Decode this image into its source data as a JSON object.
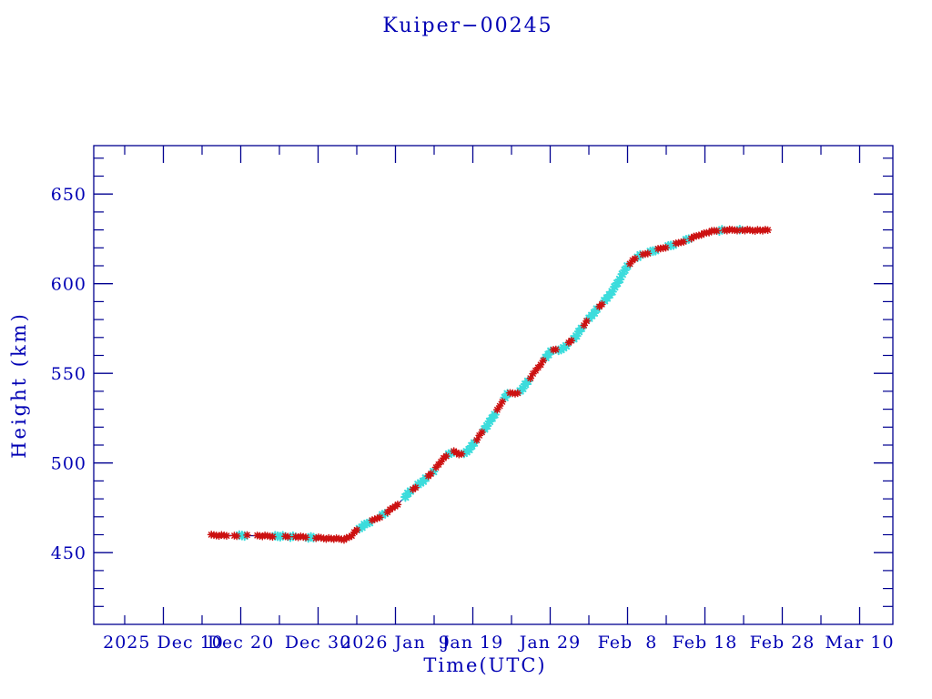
{
  "title": "Kuiper−00245",
  "axes": {
    "x_title": "Time(UTC)",
    "y_title": "Height (km)",
    "x_major_ticks": [
      {
        "day": 9,
        "label": "2025 Dec 10"
      },
      {
        "day": 19,
        "label": "Dec 20"
      },
      {
        "day": 29,
        "label": "Dec 30"
      },
      {
        "day": 39,
        "label": "2026 Jan  9"
      },
      {
        "day": 49,
        "label": "Jan 19"
      },
      {
        "day": 59,
        "label": "Jan 29"
      },
      {
        "day": 69,
        "label": "Feb  8"
      },
      {
        "day": 79,
        "label": "Feb 18"
      },
      {
        "day": 89,
        "label": "Feb 28"
      },
      {
        "day": 99,
        "label": "Mar 10"
      }
    ],
    "x_minor_days": [
      4,
      14,
      24,
      34,
      44,
      54,
      64,
      74,
      84,
      94
    ],
    "y_major_ticks": [
      {
        "value": 450,
        "label": "450"
      },
      {
        "value": 500,
        "label": "500"
      },
      {
        "value": 550,
        "label": "550"
      },
      {
        "value": 600,
        "label": "600"
      },
      {
        "value": 650,
        "label": "650"
      }
    ],
    "y_minor_values": [
      420,
      430,
      440,
      460,
      470,
      480,
      490,
      510,
      520,
      530,
      540,
      560,
      570,
      580,
      590,
      610,
      620,
      630,
      640,
      660,
      670
    ]
  },
  "colors": {
    "background": "#ffffff",
    "axis_line": "#000090",
    "text": "#0000b4",
    "connect_line": "#000080",
    "red_marker": "#cc1111",
    "cyan_marker": "#3cdcdc"
  },
  "chart_data": {
    "type": "line",
    "title": "Kuiper−00245",
    "xlabel": "Time(UTC)",
    "ylabel": "Height (km)",
    "x_unit": "days, day 0 = 2025 Dec 1 00:00 UTC",
    "xlim": [
      0,
      103.3
    ],
    "ylim": [
      410,
      677
    ],
    "legend": "none",
    "grid": false,
    "series_note": "single height-vs-time track; red asterisk markers, cyan-flagged sub-intervals, thin navy connecting line",
    "control_points": [
      [
        15.2,
        459.7
      ],
      [
        18,
        459.6
      ],
      [
        21,
        459.4
      ],
      [
        24,
        459.1
      ],
      [
        26,
        458.9
      ],
      [
        28,
        458.5
      ],
      [
        30,
        458.0
      ],
      [
        31.5,
        457.7
      ],
      [
        32.4,
        457.5
      ],
      [
        33.2,
        459.0
      ],
      [
        34,
        462.5
      ],
      [
        35,
        465.5
      ],
      [
        36,
        467.8
      ],
      [
        37,
        470.0
      ],
      [
        38,
        472.8
      ],
      [
        39,
        476.0
      ],
      [
        40,
        480.0
      ],
      [
        41,
        484.5
      ],
      [
        42,
        488.0
      ],
      [
        43,
        491.5
      ],
      [
        44,
        496.0
      ],
      [
        45,
        501.5
      ],
      [
        46,
        505.5
      ],
      [
        46.6,
        506.5
      ],
      [
        47.4,
        504.5
      ],
      [
        48,
        505.5
      ],
      [
        48.8,
        509.0
      ],
      [
        49.6,
        513.5
      ],
      [
        50.5,
        519.0
      ],
      [
        51.5,
        525.0
      ],
      [
        52.4,
        531.0
      ],
      [
        53.3,
        538.0
      ],
      [
        54.0,
        539.5
      ],
      [
        54.6,
        538.0
      ],
      [
        55.3,
        541.0
      ],
      [
        56.2,
        546.0
      ],
      [
        57.2,
        552.0
      ],
      [
        58.2,
        557.5
      ],
      [
        58.9,
        561.5
      ],
      [
        59.6,
        563.5
      ],
      [
        60.4,
        563.0
      ],
      [
        61.2,
        566.0
      ],
      [
        62.2,
        570.0
      ],
      [
        63.2,
        576.0
      ],
      [
        64.2,
        581.5
      ],
      [
        65.2,
        586.5
      ],
      [
        66.2,
        591.0
      ],
      [
        67.2,
        597.0
      ],
      [
        68.2,
        604.0
      ],
      [
        69.0,
        610.0
      ],
      [
        69.8,
        613.5
      ],
      [
        70.5,
        615.5
      ],
      [
        71.5,
        617.0
      ],
      [
        72.5,
        618.5
      ],
      [
        74.0,
        620.5
      ],
      [
        75.5,
        622.5
      ],
      [
        77.0,
        625.0
      ],
      [
        78.5,
        627.5
      ],
      [
        80.0,
        629.3
      ],
      [
        81.0,
        629.8
      ],
      [
        83.0,
        630.0
      ],
      [
        85.0,
        629.8
      ],
      [
        87.3,
        629.8
      ]
    ],
    "cyan_intervals": [
      [
        18.6,
        19.6
      ],
      [
        23.3,
        24.7
      ],
      [
        25.2,
        25.9
      ],
      [
        27.6,
        28.7
      ],
      [
        34.2,
        35.8
      ],
      [
        37.0,
        37.7
      ],
      [
        40.2,
        41.0
      ],
      [
        41.8,
        43.2
      ],
      [
        43.8,
        44.2
      ],
      [
        45.8,
        46.3
      ],
      [
        47.6,
        49.2
      ],
      [
        50.3,
        52.1
      ],
      [
        53.0,
        53.5
      ],
      [
        54.8,
        56.3
      ],
      [
        58.4,
        59.3
      ],
      [
        59.9,
        61.2
      ],
      [
        61.9,
        63.1
      ],
      [
        63.9,
        65.3
      ],
      [
        65.8,
        69.0
      ],
      [
        70.1,
        70.9
      ],
      [
        71.9,
        72.8
      ],
      [
        74.0,
        75.2
      ],
      [
        76.3,
        77.2
      ],
      [
        80.7,
        81.2
      ],
      [
        83.3,
        83.8
      ]
    ],
    "marker_gap_intervals": [
      [
        17.5,
        18.0
      ],
      [
        19.9,
        21.1
      ],
      [
        39.5,
        40.1
      ]
    ]
  }
}
